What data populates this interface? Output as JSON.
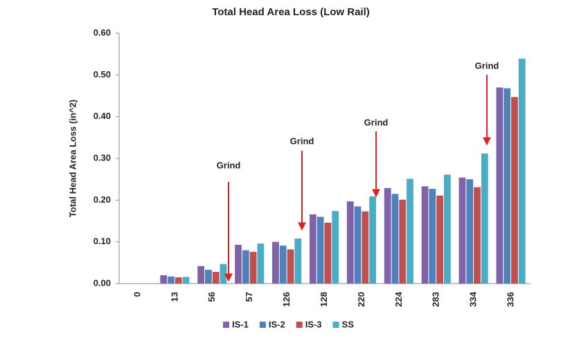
{
  "chart_data": {
    "type": "bar",
    "title": "Total Head Area Loss (Low Rail)",
    "y_label": "Total Head Area Loss (in^2)",
    "categories": [
      "0",
      "13",
      "56",
      "57",
      "126",
      "128",
      "220",
      "224",
      "283",
      "334",
      "336"
    ],
    "series": [
      {
        "name": "IS-1",
        "color": "#7f62a8",
        "values": [
          0,
          0.02,
          0.042,
          0.093,
          0.1,
          0.166,
          0.197,
          0.229,
          0.233,
          0.254,
          0.47
        ]
      },
      {
        "name": "IS-2",
        "color": "#4f81bd",
        "values": [
          0,
          0.017,
          0.033,
          0.08,
          0.091,
          0.16,
          0.185,
          0.215,
          0.227,
          0.25,
          0.468
        ]
      },
      {
        "name": "IS-3",
        "color": "#c0504d",
        "values": [
          0,
          0.015,
          0.028,
          0.076,
          0.082,
          0.146,
          0.173,
          0.201,
          0.211,
          0.231,
          0.447
        ]
      },
      {
        "name": "SS",
        "color": "#4bacc6",
        "values": [
          0,
          0.016,
          0.047,
          0.096,
          0.108,
          0.174,
          0.209,
          0.251,
          0.261,
          0.312,
          0.539
        ]
      }
    ],
    "ylim": [
      0,
      0.6
    ],
    "yticks": [
      {
        "value": 0,
        "label": "0.00"
      },
      {
        "value": 0.1,
        "label": "0.10"
      },
      {
        "value": 0.2,
        "label": "0.20"
      },
      {
        "value": 0.3,
        "label": "0.30"
      },
      {
        "value": 0.4,
        "label": "0.40"
      },
      {
        "value": 0.5,
        "label": "0.50"
      },
      {
        "value": 0.6,
        "label": "0.60"
      }
    ],
    "grid": false,
    "legend": "bottom",
    "annotations": [
      {
        "text": "Grind",
        "color": "#e02020"
      },
      {
        "text": "Grind",
        "color": "#e02020"
      },
      {
        "text": "Grind",
        "color": "#e02020"
      },
      {
        "text": "Grind",
        "color": "#e02020"
      }
    ]
  }
}
